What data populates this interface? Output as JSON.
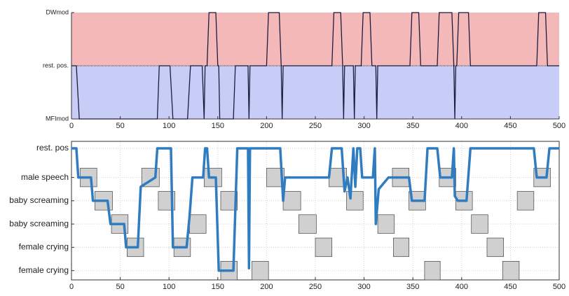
{
  "chart_data": [
    {
      "type": "line",
      "x": [
        0,
        5,
        8,
        88,
        90,
        101,
        104,
        119,
        122,
        134,
        136,
        137,
        139,
        141,
        148,
        150,
        151,
        152,
        166,
        168,
        181,
        182,
        183,
        200,
        202,
        213,
        215,
        216,
        217,
        218,
        267,
        269,
        276,
        278,
        279,
        280,
        281,
        289,
        290,
        291,
        297,
        299,
        306,
        308,
        312,
        313,
        314,
        347,
        349,
        356,
        358,
        375,
        377,
        390,
        392,
        393,
        394,
        395,
        397,
        407,
        409,
        477,
        479,
        486,
        488,
        500
      ],
      "values": [
        0,
        0,
        -1,
        -1,
        0,
        0,
        -1,
        -1,
        0,
        0,
        -1,
        0,
        0,
        1,
        1,
        0,
        0,
        -1,
        -1,
        0,
        0,
        -1,
        0,
        0,
        1,
        1,
        0,
        -1,
        0,
        0,
        0,
        1,
        1,
        0,
        -1,
        0,
        0,
        0,
        -1,
        0,
        0,
        1,
        1,
        0,
        0,
        -1,
        0,
        0,
        1,
        1,
        0,
        0,
        1,
        1,
        0,
        -1,
        0,
        0,
        1,
        1,
        0,
        0,
        1,
        1,
        0,
        0
      ],
      "color": "#1c1c3c",
      "band_colors": [
        "#f4b8b8",
        "#c8cdf8"
      ],
      "xlim": [
        0,
        500
      ],
      "xticks": [
        0,
        50,
        100,
        150,
        200,
        250,
        300,
        350,
        400,
        450,
        500
      ],
      "ylim": [
        -1,
        1
      ],
      "yticks": [
        {
          "value": 1,
          "label": "DWmod"
        },
        {
          "value": 0,
          "label": "rest. pos."
        },
        {
          "value": -1,
          "label": "MFImod"
        }
      ]
    },
    {
      "type": "timeline",
      "x": [
        0,
        5,
        7,
        20,
        22,
        37,
        40,
        54,
        56,
        68,
        71,
        86,
        88,
        102,
        104,
        118,
        121,
        124,
        135,
        137,
        139,
        141,
        148,
        151,
        166,
        170,
        181,
        182,
        183,
        214,
        217,
        219,
        264,
        267,
        277,
        280,
        283,
        286,
        289,
        291,
        293,
        296,
        298,
        309,
        311,
        312,
        315,
        325,
        346,
        349,
        362,
        365,
        375,
        378,
        390,
        392,
        393,
        396,
        405,
        409,
        474,
        477,
        487,
        490,
        500
      ],
      "values": [
        6.25,
        6.25,
        5,
        5,
        4,
        4,
        3,
        3,
        2,
        2,
        4.6,
        5,
        6.25,
        6.25,
        2,
        2,
        3.3,
        5,
        5,
        6.25,
        6.25,
        5,
        5,
        1,
        1,
        6.25,
        6.25,
        1.1,
        6.25,
        6.25,
        4,
        5,
        5,
        6.25,
        6.25,
        4.4,
        5,
        4.1,
        6.25,
        4.6,
        6.25,
        6.25,
        5,
        5,
        6.25,
        3,
        4.5,
        5,
        5,
        4,
        4,
        6.25,
        6.25,
        5,
        5,
        6.25,
        4.2,
        4,
        4,
        6.25,
        6.25,
        5,
        5,
        6.25,
        6.25
      ],
      "color": "#2f7cc0",
      "box_color": "#d0d0d0",
      "box_rows": [
        {
          "level": 5,
          "spans": [
            [
              9,
              26
            ],
            [
              72,
              90
            ],
            [
              136,
              154
            ],
            [
              200,
              218
            ],
            [
              264,
              282
            ],
            [
              329,
              346
            ],
            [
              377,
              394
            ],
            [
              474,
              491
            ]
          ]
        },
        {
          "level": 4,
          "spans": [
            [
              24,
              42
            ],
            [
              89,
              106
            ],
            [
              153,
              170
            ],
            [
              217,
              235
            ],
            [
              282,
              299
            ],
            [
              346,
              363
            ],
            [
              394,
              411
            ],
            [
              457,
              474
            ]
          ]
        },
        {
          "level": 3,
          "spans": [
            [
              41,
              58
            ],
            [
              121,
              138
            ],
            [
              233,
              251
            ],
            [
              314,
              331
            ],
            [
              410,
              427
            ]
          ]
        },
        {
          "level": 2,
          "spans": [
            [
              57,
              74
            ],
            [
              105,
              122
            ],
            [
              250,
              267
            ],
            [
              330,
              346
            ],
            [
              426,
              443
            ]
          ]
        },
        {
          "level": 1,
          "spans": [
            [
              153,
              170
            ],
            [
              185,
              202
            ],
            [
              362,
              378
            ],
            [
              442,
              459
            ]
          ]
        }
      ],
      "xlim": [
        0,
        500
      ],
      "xticks": [
        0,
        50,
        100,
        150,
        200,
        250,
        300,
        350,
        400,
        450,
        500
      ],
      "ylim": [
        0.6,
        6.55
      ],
      "yticks": [
        {
          "value": 6.25,
          "label": "rest. pos"
        },
        {
          "value": 5,
          "label": "male speech"
        },
        {
          "value": 4,
          "label": "baby screaming"
        },
        {
          "value": 3,
          "label": "baby screaming"
        },
        {
          "value": 2,
          "label": "female crying"
        },
        {
          "value": 1,
          "label": "female crying"
        }
      ],
      "grid": true
    }
  ]
}
